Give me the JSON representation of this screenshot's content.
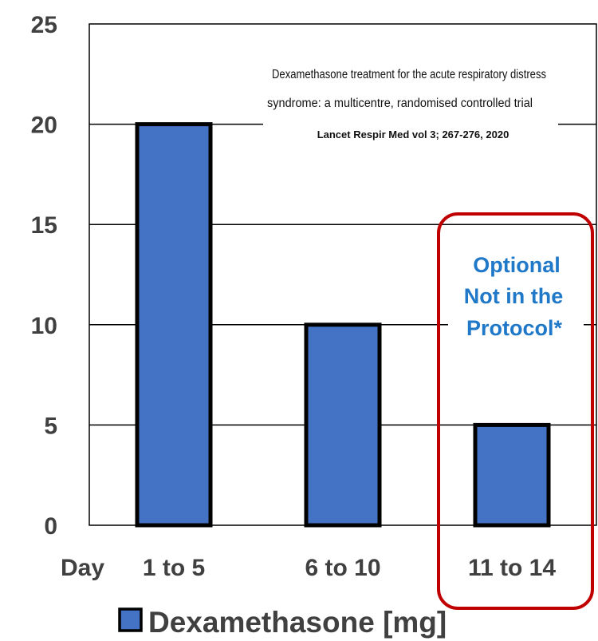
{
  "chart_data": {
    "type": "bar",
    "categories": [
      "1 to 5",
      "6 to 10",
      "11 to 14"
    ],
    "x_prefix_label": "Day",
    "series": [
      {
        "name": "Dexamethasone [mg]",
        "values": [
          20,
          10,
          5
        ]
      }
    ],
    "ylim": [
      0,
      25
    ],
    "yticks": [
      0,
      5,
      10,
      15,
      20,
      25
    ],
    "grid": true,
    "legend_position": "bottom",
    "annotations": {
      "reference_line1": "Dexamethasone treatment for the acute respiratory distress",
      "reference_line2": "syndrome: a multicentre, randomised controlled trial",
      "citation": "Lancet Respir Med vol 3; 267-276, 2020",
      "optional_note": [
        "Optional",
        "Not in the",
        "Protocol*"
      ]
    }
  },
  "colors": {
    "bar_fill": "#4472c4",
    "bar_stroke": "#000000",
    "highlight_box": "#c00000",
    "note_text": "#1f78c8",
    "axis_text": "#404040"
  }
}
